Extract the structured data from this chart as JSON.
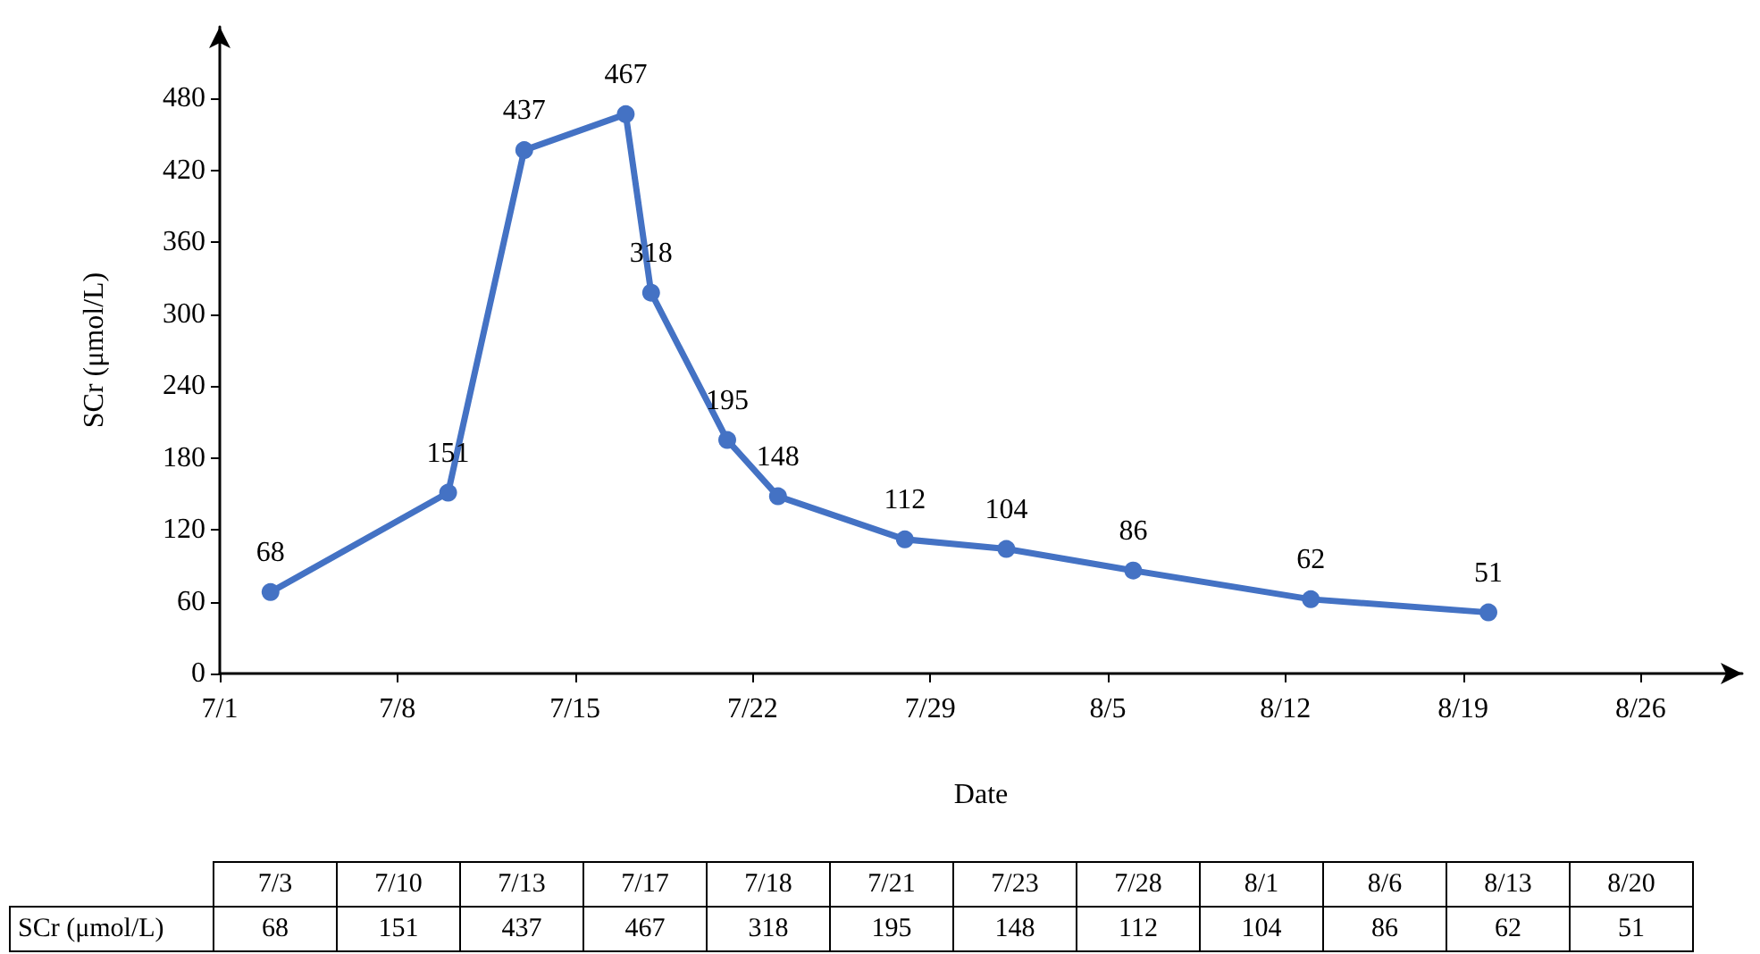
{
  "chart_data": [
    {
      "type": "line",
      "xlabel": "Date",
      "ylabel": "SCr (μmol/L)",
      "x": [
        "--07-03",
        "--07-10",
        "--07-13",
        "--07-17",
        "--07-18",
        "--07-21",
        "--07-23",
        "--07-28",
        "--08-01",
        "--08-06",
        "--08-13",
        "--08-20"
      ],
      "series": [
        {
          "color": "#4472c4",
          "values": [
            68,
            151,
            437,
            467,
            318,
            195,
            148,
            112,
            104,
            86,
            62,
            51
          ]
        }
      ],
      "xlim": [
        "--07-01",
        "--08-30"
      ],
      "xticks": [
        {
          "value": "--07-01",
          "label": "7/1"
        },
        {
          "value": "--07-08",
          "label": "7/8"
        },
        {
          "value": "--07-15",
          "label": "7/15"
        },
        {
          "value": "--07-22",
          "label": "7/22"
        },
        {
          "value": "--07-29",
          "label": "7/29"
        },
        {
          "value": "--08-05",
          "label": "8/5"
        },
        {
          "value": "--08-12",
          "label": "8/12"
        },
        {
          "value": "--08-19",
          "label": "8/19"
        },
        {
          "value": "--08-26",
          "label": "8/26"
        }
      ],
      "ylim": [
        0,
        540
      ],
      "yticks": [
        0,
        60,
        120,
        180,
        240,
        300,
        360,
        420,
        480
      ],
      "data_labels": true,
      "marker": "circle",
      "line_style": "solid",
      "grid": false
    },
    {
      "type": "other",
      "categories": [
        "7/3",
        "7/10",
        "7/13",
        "7/17",
        "7/18",
        "7/21",
        "7/23",
        "7/28",
        "8/1",
        "8/6",
        "8/13",
        "8/20"
      ],
      "series": [
        {
          "name": "SCr (μmol/L)",
          "values": [
            68,
            151,
            437,
            467,
            318,
            195,
            148,
            112,
            104,
            86,
            62,
            51
          ]
        }
      ],
      "data_labels": true
    }
  ]
}
